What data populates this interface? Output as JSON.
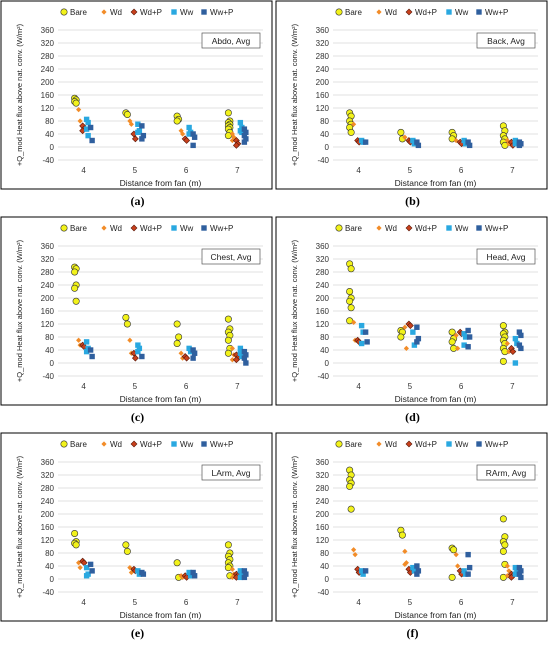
{
  "legend": [
    "Bare",
    "Wd",
    "Wd+P",
    "Ww",
    "Ww+P"
  ],
  "series_colors": {
    "Bare": "#f2f21a",
    "Wd": "#f28c28",
    "Wd+P": "#c8401c",
    "Ww": "#29a8e0",
    "Ww+P": "#2f5f9e"
  },
  "series_markers": {
    "Bare": "circle",
    "Wd": "diamond-small",
    "Wd+P": "diamond",
    "Ww": "square",
    "Ww+P": "square"
  },
  "chart_data": [
    {
      "type": "scatter",
      "panel_label": "(a)",
      "box_label": "Abdo, Avg",
      "xlabel": "Distance from fan (m)",
      "ylabel": "+Q_mod Heat flux above nat. conv. (W/m²)",
      "x_categories": [
        "4",
        "5",
        "6",
        "7"
      ],
      "ylim": [
        -40,
        360
      ],
      "yticks": [
        -40,
        0,
        40,
        80,
        120,
        160,
        200,
        240,
        280,
        320,
        360
      ],
      "series": [
        {
          "name": "Bare",
          "points": {
            "4": [
              150,
              145,
              140,
              135
            ],
            "5": [
              105,
              100
            ],
            "6": [
              95,
              85,
              80
            ],
            "7": [
              105,
              80,
              75,
              70,
              65,
              60,
              55,
              45,
              35
            ]
          }
        },
        {
          "name": "Wd",
          "points": {
            "4": [
              115,
              80
            ],
            "5": [
              80,
              70
            ],
            "6": [
              50,
              40
            ],
            "7": [
              40,
              30,
              20
            ]
          }
        },
        {
          "name": "Wd+P",
          "points": {
            "4": [
              65,
              55,
              50
            ],
            "5": [
              40,
              25
            ],
            "6": [
              25,
              20
            ],
            "7": [
              20,
              10,
              5
            ]
          }
        },
        {
          "name": "Ww",
          "points": {
            "4": [
              85,
              75,
              55,
              35
            ],
            "5": [
              70,
              50,
              45
            ],
            "6": [
              60,
              45,
              40
            ],
            "7": [
              75,
              60,
              50,
              45
            ]
          }
        },
        {
          "name": "Ww+P",
          "points": {
            "4": [
              60,
              20
            ],
            "5": [
              65,
              35,
              25
            ],
            "6": [
              40,
              30,
              5
            ],
            "7": [
              55,
              45,
              35,
              25,
              15
            ]
          }
        }
      ]
    },
    {
      "type": "scatter",
      "panel_label": "(b)",
      "box_label": "Back, Avg",
      "xlabel": "Distance from fan (m)",
      "ylabel": "+Q_mod Heat flux above nat. conv. (W/m²)",
      "x_categories": [
        "4",
        "5",
        "6",
        "7"
      ],
      "ylim": [
        -40,
        360
      ],
      "yticks": [
        -40,
        0,
        40,
        80,
        120,
        160,
        200,
        240,
        280,
        320,
        360
      ],
      "series": [
        {
          "name": "Bare",
          "points": {
            "4": [
              105,
              95,
              80,
              70,
              60,
              45
            ],
            "5": [
              45,
              25
            ],
            "6": [
              45,
              35,
              25
            ],
            "7": [
              65,
              50,
              35,
              25,
              15,
              5
            ]
          }
        },
        {
          "name": "Wd",
          "points": {
            "4": [
              70
            ],
            "5": [
              30
            ],
            "6": [
              20
            ],
            "7": [
              20,
              10
            ]
          }
        },
        {
          "name": "Wd+P",
          "points": {
            "4": [
              20,
              15
            ],
            "5": [
              20,
              15
            ],
            "6": [
              15,
              10
            ],
            "7": [
              15,
              5
            ]
          }
        },
        {
          "name": "Ww",
          "points": {
            "4": [
              20,
              15
            ],
            "5": [
              20,
              10
            ],
            "6": [
              20,
              10
            ],
            "7": [
              20,
              15,
              10
            ]
          }
        },
        {
          "name": "Ww+P",
          "points": {
            "4": [
              15
            ],
            "5": [
              15,
              5
            ],
            "6": [
              15,
              5
            ],
            "7": [
              15,
              10,
              5
            ]
          }
        }
      ]
    },
    {
      "type": "scatter",
      "panel_label": "(c)",
      "box_label": "Chest, Avg",
      "xlabel": "Distance from fan (m)",
      "ylabel": "+Q_mod Heat flux above nat. conv. (W/m²)",
      "x_categories": [
        "4",
        "5",
        "6",
        "7"
      ],
      "ylim": [
        -40,
        360
      ],
      "yticks": [
        -40,
        0,
        40,
        80,
        120,
        160,
        200,
        240,
        280,
        320,
        360
      ],
      "series": [
        {
          "name": "Bare",
          "points": {
            "4": [
              295,
              290,
              280,
              240,
              230,
              190
            ],
            "5": [
              140,
              120
            ],
            "6": [
              120,
              80,
              60
            ],
            "7": [
              135,
              105,
              95,
              85,
              70,
              45,
              30
            ]
          }
        },
        {
          "name": "Wd",
          "points": {
            "4": [
              70,
              55
            ],
            "5": [
              70,
              30
            ],
            "6": [
              30,
              15
            ],
            "7": [
              45,
              25,
              10
            ]
          }
        },
        {
          "name": "Wd+P",
          "points": {
            "4": [
              55,
              50
            ],
            "5": [
              30,
              15
            ],
            "6": [
              20,
              15
            ],
            "7": [
              25,
              15,
              10
            ]
          }
        },
        {
          "name": "Ww",
          "points": {
            "4": [
              65,
              45,
              35
            ],
            "5": [
              55,
              45,
              35
            ],
            "6": [
              45,
              35
            ],
            "7": [
              45,
              35,
              30,
              20
            ]
          }
        },
        {
          "name": "Ww+P",
          "points": {
            "4": [
              40,
              20
            ],
            "5": [
              20
            ],
            "6": [
              40,
              30,
              15
            ],
            "7": [
              35,
              25,
              15,
              0
            ]
          }
        }
      ]
    },
    {
      "type": "scatter",
      "panel_label": "(d)",
      "box_label": "Head, Avg",
      "xlabel": "Distance from fan (m)",
      "ylabel": "+Q_mod Heat flux above nat. conv. (W/m²)",
      "x_categories": [
        "4",
        "5",
        "6",
        "7"
      ],
      "ylim": [
        -40,
        360
      ],
      "yticks": [
        -40,
        0,
        40,
        80,
        120,
        160,
        200,
        240,
        280,
        320,
        360
      ],
      "series": [
        {
          "name": "Bare",
          "points": {
            "4": [
              305,
              290,
              220,
              200,
              190,
              170,
              130
            ],
            "5": [
              100,
              95,
              80
            ],
            "6": [
              95,
              75,
              65,
              45
            ],
            "7": [
              115,
              95,
              90,
              80,
              70,
              60,
              45,
              35,
              5
            ]
          }
        },
        {
          "name": "Wd",
          "points": {
            "4": [
              125,
              70
            ],
            "5": [
              110,
              45
            ],
            "6": [
              85,
              45
            ],
            "7": [
              60,
              35
            ]
          }
        },
        {
          "name": "Wd+P",
          "points": {
            "4": [
              70,
              65
            ],
            "5": [
              120,
              115
            ],
            "6": [
              95,
              90
            ],
            "7": [
              45,
              35
            ]
          }
        },
        {
          "name": "Ww",
          "points": {
            "4": [
              115,
              95,
              60
            ],
            "5": [
              95,
              55
            ],
            "6": [
              90,
              80,
              55
            ],
            "7": [
              75,
              60,
              0
            ]
          }
        },
        {
          "name": "Ww+P",
          "points": {
            "4": [
              95,
              65
            ],
            "5": [
              110,
              75,
              65
            ],
            "6": [
              100,
              80,
              50
            ],
            "7": [
              95,
              85,
              55,
              45
            ]
          }
        }
      ]
    },
    {
      "type": "scatter",
      "panel_label": "(e)",
      "box_label": "LArm, Avg",
      "xlabel": "Distance from fan (m)",
      "ylabel": "+Q_mod Heat flux above nat. conv. (W/m²)",
      "x_categories": [
        "4",
        "5",
        "6",
        "7"
      ],
      "ylim": [
        -40,
        360
      ],
      "yticks": [
        -40,
        0,
        40,
        80,
        120,
        160,
        200,
        240,
        280,
        320,
        360
      ],
      "series": [
        {
          "name": "Bare",
          "points": {
            "4": [
              140,
              115,
              110,
              105
            ],
            "5": [
              105,
              85
            ],
            "6": [
              50,
              5
            ],
            "7": [
              105,
              80,
              70,
              60,
              50,
              40,
              35,
              10
            ]
          }
        },
        {
          "name": "Wd",
          "points": {
            "4": [
              50,
              35
            ],
            "5": [
              35,
              20
            ],
            "6": [
              10,
              5
            ],
            "7": [
              30,
              15,
              5
            ]
          }
        },
        {
          "name": "Wd+P",
          "points": {
            "4": [
              55,
              50
            ],
            "5": [
              30,
              25
            ],
            "6": [
              10,
              5
            ],
            "7": [
              15,
              10,
              5
            ]
          }
        },
        {
          "name": "Ww",
          "points": {
            "4": [
              35,
              15,
              10
            ],
            "5": [
              25,
              15
            ],
            "6": [
              20,
              10
            ],
            "7": [
              25,
              20,
              5
            ]
          }
        },
        {
          "name": "Ww+P",
          "points": {
            "4": [
              45,
              25
            ],
            "5": [
              20,
              15
            ],
            "6": [
              20,
              10
            ],
            "7": [
              25,
              15,
              5
            ]
          }
        }
      ]
    },
    {
      "type": "scatter",
      "panel_label": "(f)",
      "box_label": "RArm, Avg",
      "xlabel": "Distance from fan (m)",
      "ylabel": "+Q_mod Heat flux above nat. conv. (W/m²)",
      "x_categories": [
        "4",
        "5",
        "6",
        "7"
      ],
      "ylim": [
        -40,
        360
      ],
      "yticks": [
        -40,
        0,
        40,
        80,
        120,
        160,
        200,
        240,
        280,
        320,
        360
      ],
      "series": [
        {
          "name": "Bare",
          "points": {
            "4": [
              335,
              320,
              305,
              295,
              285,
              215
            ],
            "5": [
              150,
              135
            ],
            "6": [
              95,
              90,
              5
            ],
            "7": [
              185,
              130,
              115,
              105,
              85,
              45,
              5
            ]
          }
        },
        {
          "name": "Wd",
          "points": {
            "4": [
              90,
              75
            ],
            "5": [
              85,
              50,
              45
            ],
            "6": [
              75,
              40
            ],
            "7": [
              40,
              25,
              10
            ]
          }
        },
        {
          "name": "Wd+P",
          "points": {
            "4": [
              30,
              20
            ],
            "5": [
              30,
              20
            ],
            "6": [
              25,
              15
            ],
            "7": [
              15,
              10,
              5
            ]
          }
        },
        {
          "name": "Ww",
          "points": {
            "4": [
              25,
              15
            ],
            "5": [
              35,
              25
            ],
            "6": [
              25,
              15
            ],
            "7": [
              35,
              25,
              15
            ]
          }
        },
        {
          "name": "Ww+P",
          "points": {
            "4": [
              25
            ],
            "5": [
              40,
              25,
              15
            ],
            "6": [
              75,
              35,
              15
            ],
            "7": [
              35,
              25,
              15,
              5
            ]
          }
        }
      ]
    }
  ]
}
